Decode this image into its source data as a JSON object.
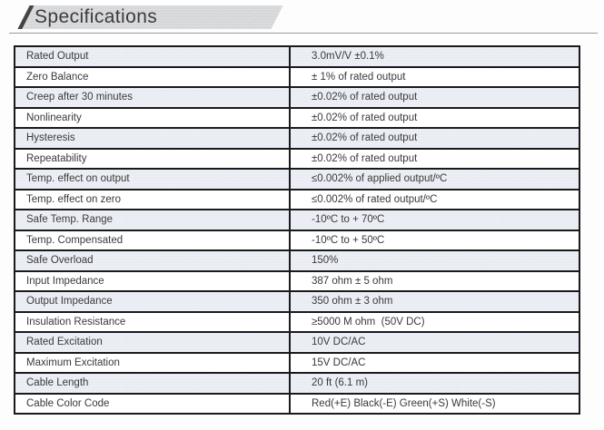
{
  "header": {
    "title": "Specifications"
  },
  "colors": {
    "banner_fill": "#d5d6d8",
    "banner_stripe": "#454547",
    "table_border": "#1a1a1c",
    "row_shaded": "#e9edf3",
    "text": "#39393c"
  },
  "table": {
    "rows": [
      {
        "label": "Rated Output",
        "value": "3.0mV/V ±0.1%",
        "shaded": true
      },
      {
        "label": "Zero Balance",
        "value": "± 1% of rated output",
        "shaded": false
      },
      {
        "label": "Creep after 30 minutes",
        "value": "±0.02% of rated output",
        "shaded": true
      },
      {
        "label": "Nonlinearity",
        "value": "±0.02% of rated output",
        "shaded": false
      },
      {
        "label": "Hysteresis",
        "value": "±0.02% of rated output",
        "shaded": true
      },
      {
        "label": "Repeatability",
        "value": "±0.02% of rated output",
        "shaded": false
      },
      {
        "label": "Temp. effect on output",
        "value": "≤0.002% of applied output/ºC",
        "shaded": true
      },
      {
        "label": "Temp. effect on zero",
        "value": "≤0.002% of rated output/ºC",
        "shaded": false
      },
      {
        "label": "Safe Temp. Range",
        "value": "-10ºC to + 70ºC",
        "shaded": true
      },
      {
        "label": "Temp. Compensated",
        "value": "-10ºC to + 50ºC",
        "shaded": false
      },
      {
        "label": "Safe Overload",
        "value": "150%",
        "shaded": true
      },
      {
        "label": "Input Impedance",
        "value": "387 ohm ± 5 ohm",
        "shaded": false
      },
      {
        "label": "Output Impedance",
        "value": "350 ohm ± 3 ohm",
        "shaded": true
      },
      {
        "label": "Insulation Resistance",
        "value": "≥5000 M ohm  (50V DC)",
        "shaded": false
      },
      {
        "label": "Rated Excitation",
        "value": "10V DC/AC",
        "shaded": true
      },
      {
        "label": "Maximum Excitation",
        "value": "15V DC/AC",
        "shaded": false
      },
      {
        "label": "Cable Length",
        "value": "20 ft (6.1 m)",
        "shaded": true
      },
      {
        "label": "Cable Color Code",
        "value": "Red(+E) Black(-E) Green(+S) White(-S)",
        "shaded": false
      }
    ]
  }
}
